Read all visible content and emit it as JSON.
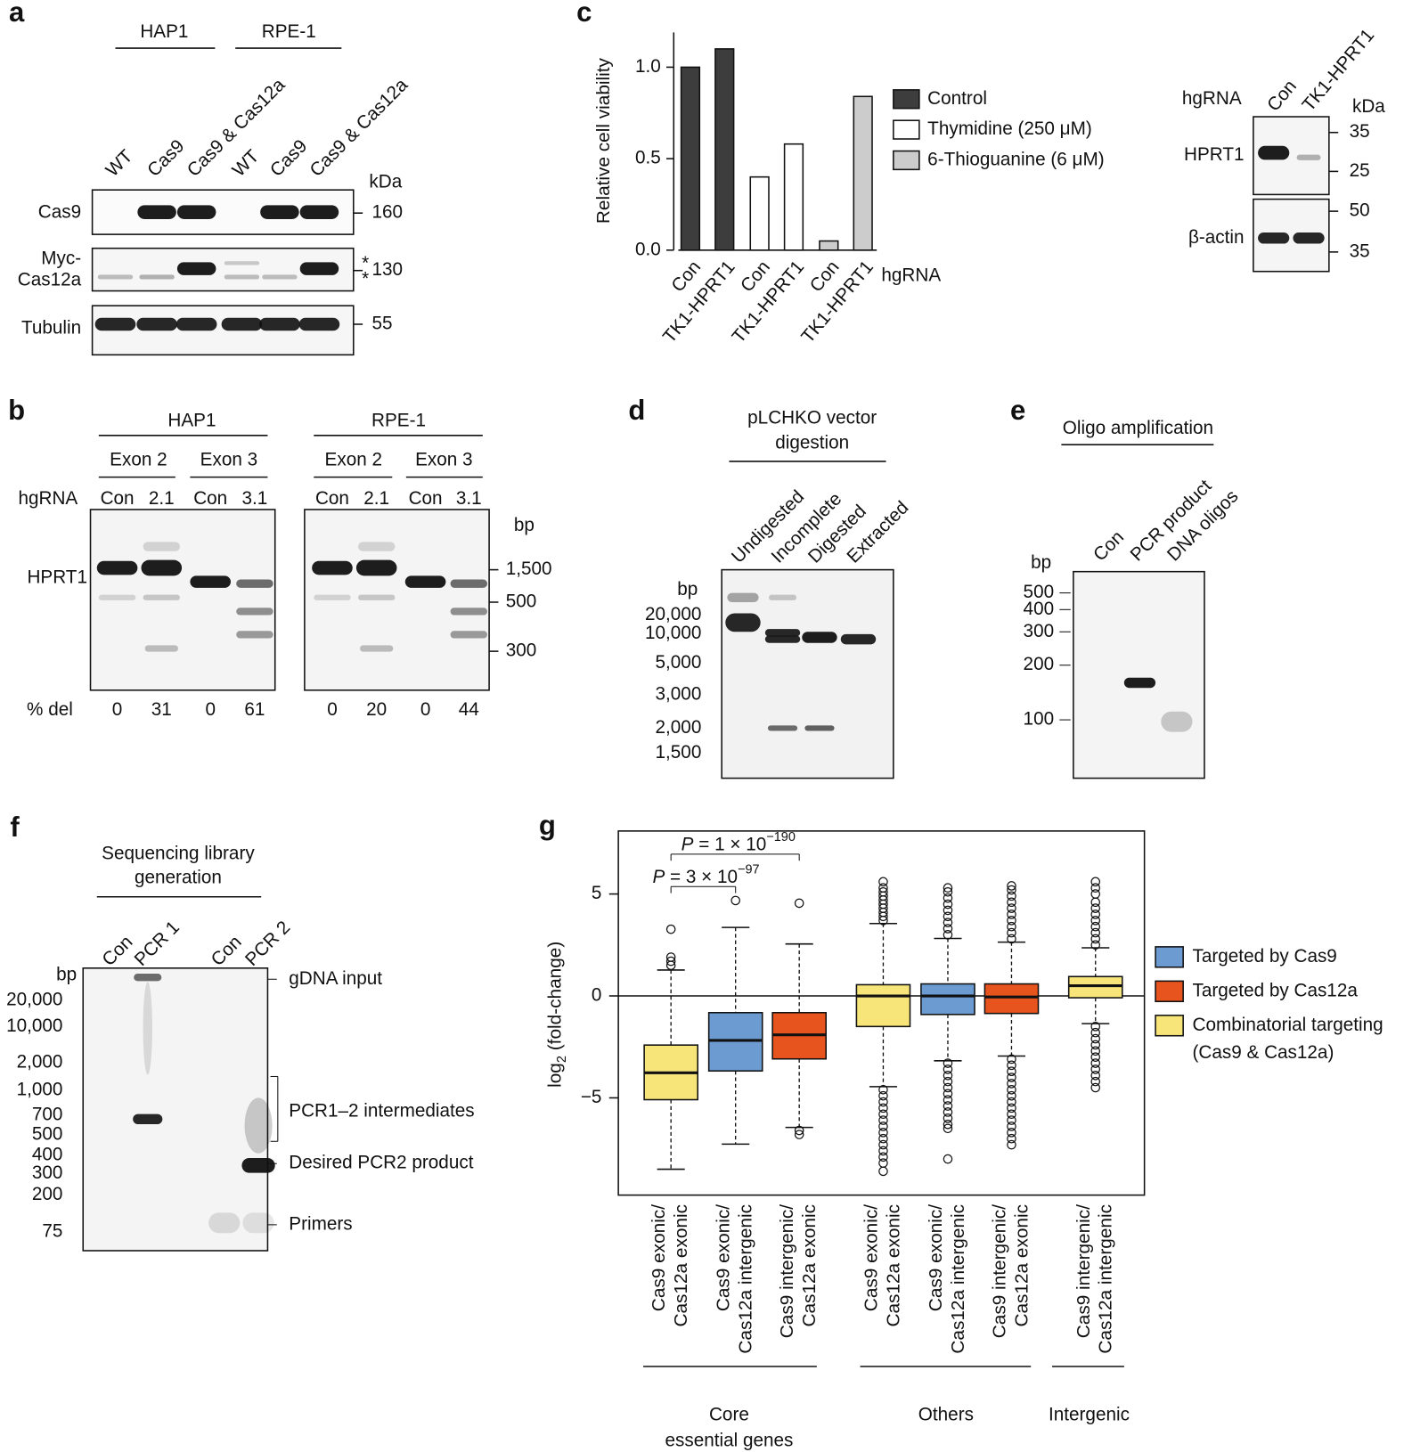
{
  "panel_a": {
    "label": "a",
    "groups": [
      "HAP1",
      "RPE-1"
    ],
    "lanes": [
      "WT",
      "Cas9",
      "Cas9 & Cas12a",
      "WT",
      "Cas9",
      "Cas9 & Cas12a"
    ],
    "unit": "kDa",
    "rows": [
      {
        "label": [
          "Cas9"
        ],
        "size": 160
      },
      {
        "label": [
          "Myc-",
          "Cas12a"
        ],
        "size": 130
      },
      {
        "label": [
          "Tubulin"
        ],
        "size": 55
      }
    ],
    "asterisks": [
      "*",
      "*"
    ]
  },
  "panel_b": {
    "label": "b",
    "groups": [
      {
        "name": "HAP1",
        "exons": [
          "Exon 2",
          "Exon 3"
        ]
      },
      {
        "name": "RPE-1",
        "exons": [
          "Exon 2",
          "Exon 3"
        ]
      }
    ],
    "hgrna_label": "hgRNA",
    "lanes": [
      "Con",
      "2.1",
      "Con",
      "3.1",
      "Con",
      "2.1",
      "Con",
      "3.1"
    ],
    "band_label": "HPRT1",
    "unit": "bp",
    "markers": [
      "1,500",
      500,
      300
    ],
    "del_label": "% del",
    "del_values": [
      0,
      31,
      0,
      61,
      0,
      20,
      0,
      44
    ]
  },
  "panel_c_blot": {
    "hgrna_label": "hgRNA",
    "lanes": [
      "Con",
      "TK1-HPRT1"
    ],
    "unit": "kDa",
    "rows": [
      {
        "label": "HPRT1",
        "markers": [
          35,
          25
        ]
      },
      {
        "label": "β-actin",
        "markers": [
          50,
          35
        ]
      }
    ]
  },
  "panel_d": {
    "label": "d",
    "title": [
      "pLCHKO vector",
      "digestion"
    ],
    "lanes": [
      "Undigested",
      "Incomplete",
      "Digested",
      "Extracted"
    ],
    "unit": "bp",
    "markers": [
      "20,000",
      "10,000",
      "5,000",
      "3,000",
      "2,000",
      "1,500"
    ]
  },
  "panel_e": {
    "label": "e",
    "title": "Oligo amplification",
    "lanes": [
      "Con",
      "PCR product",
      "DNA oligos"
    ],
    "unit": "bp",
    "markers": [
      500,
      400,
      300,
      200,
      100
    ]
  },
  "panel_f": {
    "label": "f",
    "title": [
      "Sequencing library",
      "generation"
    ],
    "lanes": [
      "Con",
      "PCR 1",
      "Con",
      "PCR 2"
    ],
    "unit": "bp",
    "markers": [
      "20,000",
      "10,000",
      "2,000",
      "1,000",
      700,
      500,
      400,
      300,
      200,
      75
    ],
    "annotations": [
      "gDNA input",
      "PCR1–2 intermediates",
      "Desired PCR2 product",
      "Primers"
    ]
  },
  "chart_data": [
    {
      "type": "bar",
      "panel": "c",
      "ylabel": "Relative cell viability",
      "xlabel": "hgRNA",
      "categories": [
        "Con",
        "TK1-HPRT1",
        "Con",
        "TK1-HPRT1",
        "Con",
        "TK1-HPRT1"
      ],
      "series": [
        {
          "name": "Control",
          "color": "#3d3d3d",
          "values": [
            1.0,
            1.1,
            null,
            null,
            null,
            null
          ]
        },
        {
          "name": "Thymidine (250 μM)",
          "color": "#ffffff",
          "values": [
            null,
            null,
            0.4,
            0.58,
            null,
            null
          ]
        },
        {
          "name": "6-Thioguanine (6 μM)",
          "color": "#cccccc",
          "values": [
            null,
            null,
            null,
            null,
            0.05,
            0.84
          ]
        }
      ],
      "ylim": [
        0,
        1.19
      ],
      "yticks": [
        {
          "value": 0,
          "label": "0.0"
        },
        {
          "value": 0.5,
          "label": "0.5"
        },
        {
          "value": 1,
          "label": "1.0"
        }
      ]
    },
    {
      "type": "box",
      "panel": "g",
      "ylabel": {
        "text": "log",
        "sub": "2",
        "rest": " (fold-change)"
      },
      "ylim": [
        -9.77,
        8.09
      ],
      "yticks": [
        {
          "value": -5,
          "label": "−5"
        },
        0,
        5
      ],
      "categories": [
        [
          "Cas9 exonic/",
          "Cas12a exonic"
        ],
        [
          "Cas9 exonic/",
          "Cas12a intergenic"
        ],
        [
          "Cas9 intergenic/",
          "Cas12a exonic"
        ],
        [
          "Cas9 exonic/",
          "Cas12a exonic"
        ],
        [
          "Cas9 exonic/",
          "Cas12a intergenic"
        ],
        [
          "Cas9 intergenic/",
          "Cas12a exonic"
        ],
        [
          "Cas9 intergenic/",
          "Cas12a intergenic"
        ]
      ],
      "groups": [
        [
          "Core",
          "essential genes"
        ],
        [
          "Others"
        ],
        [
          "Intergenic"
        ]
      ],
      "boxes": [
        {
          "color": "#f7e57a",
          "whislo": -8.5,
          "q1": -5.09,
          "med": -3.77,
          "q3": -2.41,
          "whishi": 1.27,
          "fliers": [
            3.27,
            1.9,
            1.7,
            1.5
          ]
        },
        {
          "color": "#6c9bd2",
          "whislo": -7.27,
          "q1": -3.68,
          "med": -2.18,
          "q3": -0.82,
          "whishi": 3.36,
          "fliers": [
            4.68
          ]
        },
        {
          "color": "#e8541e",
          "whislo": -6.45,
          "q1": -3.09,
          "med": -1.91,
          "q3": -0.82,
          "whishi": 2.55,
          "fliers": [
            4.55,
            -6.6,
            -6.8
          ]
        },
        {
          "color": "#f7e57a",
          "whislo": -4.45,
          "q1": -1.5,
          "med": 0,
          "q3": 0.55,
          "whishi": 3.55,
          "fliers": [
            3.7,
            3.9,
            4.1,
            4.3,
            4.5,
            4.7,
            4.9,
            5.1,
            5.3,
            5.6,
            -4.6,
            -4.9,
            -5.2,
            -5.5,
            -5.8,
            -6.1,
            -6.4,
            -6.7,
            -7,
            -7.3,
            -7.6,
            -7.9,
            -8.2,
            -8.6
          ]
        },
        {
          "color": "#6c9bd2",
          "whislo": -3.18,
          "q1": -0.91,
          "med": 0,
          "q3": 0.59,
          "whishi": 2.82,
          "fliers": [
            3,
            3.3,
            3.6,
            3.9,
            4.2,
            4.5,
            4.8,
            5.1,
            5.3,
            -3.3,
            -3.6,
            -3.9,
            -4.2,
            -4.5,
            -4.8,
            -5.1,
            -5.4,
            -5.7,
            -6,
            -6.3,
            -6.5,
            -8
          ]
        },
        {
          "color": "#e8541e",
          "whislo": -2.95,
          "q1": -0.86,
          "med": -0.05,
          "q3": 0.59,
          "whishi": 2.64,
          "fliers": [
            2.8,
            3.1,
            3.4,
            3.7,
            4,
            4.3,
            4.6,
            4.9,
            5.2,
            5.4,
            -3.1,
            -3.4,
            -3.7,
            -4,
            -4.3,
            -4.6,
            -4.9,
            -5.2,
            -5.5,
            -5.8,
            -6.1,
            -6.4,
            -6.7,
            -7,
            -7.3
          ]
        },
        {
          "color": "#f7e57a",
          "whislo": -1.36,
          "q1": -0.09,
          "med": 0.5,
          "q3": 0.95,
          "whishi": 2.36,
          "fliers": [
            2.5,
            2.8,
            3.1,
            3.4,
            3.7,
            4,
            4.3,
            4.6,
            5,
            5.3,
            5.6,
            -1.5,
            -1.8,
            -2.1,
            -2.4,
            -2.7,
            -3,
            -3.3,
            -3.6,
            -3.9,
            -4.2,
            -4.5
          ]
        }
      ],
      "legend": [
        {
          "name": [
            "Targeted by Cas9"
          ],
          "color": "#6c9bd2"
        },
        {
          "name": [
            "Targeted by Cas12a"
          ],
          "color": "#e8541e"
        },
        {
          "name": [
            "Combinatorial targeting",
            "(Cas9 & Cas12a)"
          ],
          "color": "#f7e57a"
        }
      ],
      "annotations": [
        {
          "symbol": "P",
          "text": " = 1 × 10",
          "exponent": "−190"
        },
        {
          "symbol": "P",
          "text": " = 3 × 10",
          "exponent": "−97"
        }
      ]
    }
  ]
}
